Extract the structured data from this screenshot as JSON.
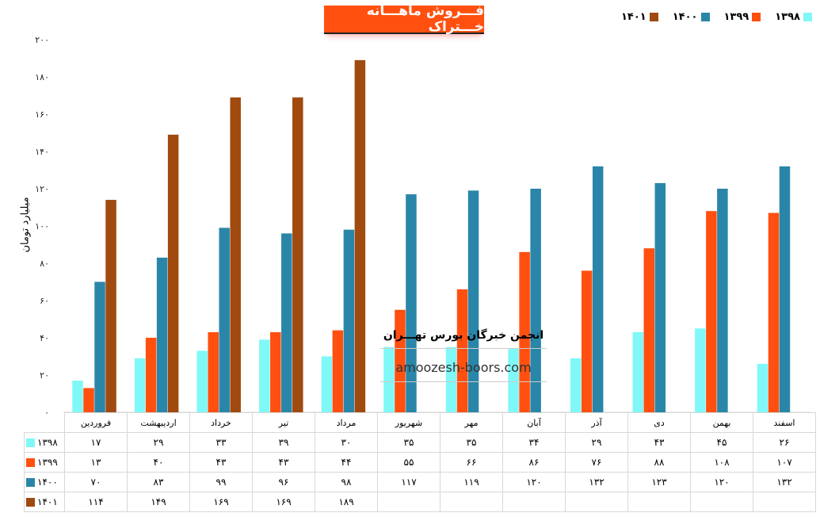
{
  "chart_data": {
    "type": "bar",
    "title": "فـــروش ماهـــانه خـــتراک",
    "ylabel": "میلیارد تومان",
    "xlabel": "",
    "ylim": [
      0,
      200
    ],
    "yticks": [
      0,
      20,
      40,
      60,
      80,
      100,
      120,
      140,
      160,
      180,
      200
    ],
    "legend_position": "top-right",
    "categories": [
      "فروردین",
      "اردیبهشت",
      "خرداد",
      "تیر",
      "مرداد",
      "شهریور",
      "مهر",
      "آبان",
      "آذر",
      "دی",
      "بهمن",
      "اسفند"
    ],
    "series": [
      {
        "name": "۱۳۹۸",
        "color": "#80F8F8",
        "values": [
          17,
          29,
          33,
          39,
          30,
          35,
          35,
          34,
          29,
          43,
          45,
          26
        ]
      },
      {
        "name": "۱۳۹۹",
        "color": "#FF5010",
        "values": [
          13,
          40,
          43,
          43,
          44,
          55,
          66,
          86,
          76,
          88,
          108,
          107
        ]
      },
      {
        "name": "۱۴۰۰",
        "color": "#2A86A8",
        "values": [
          70,
          83,
          99,
          96,
          98,
          117,
          119,
          120,
          132,
          123,
          120,
          132
        ]
      },
      {
        "name": "۱۴۰۱",
        "color": "#A04A10",
        "values": [
          114,
          149,
          169,
          169,
          189,
          null,
          null,
          null,
          null,
          null,
          null,
          null
        ]
      }
    ]
  },
  "watermark": {
    "name": "انجمن خبرگان بورس تهـــران",
    "url": "amoozesh-boors.com"
  }
}
